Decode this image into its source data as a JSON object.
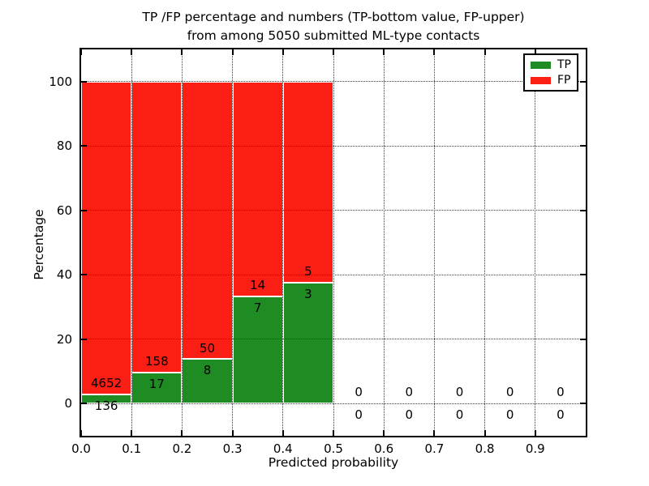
{
  "chart_data": {
    "type": "bar",
    "stacked": true,
    "title_lines": [
      "TP /FP percentage and numbers (TP-bottom value, FP-upper)",
      "from among 5050 submitted ML-type contacts"
    ],
    "xlabel": "Predicted probability",
    "ylabel": "Percentage",
    "xlim": [
      0.0,
      1.0
    ],
    "ylim": [
      -10,
      110
    ],
    "x_tick_labels": [
      "0.0",
      "0.1",
      "0.2",
      "0.3",
      "0.4",
      "0.5",
      "0.6",
      "0.7",
      "0.8",
      "0.9"
    ],
    "y_tick_values": [
      0,
      20,
      40,
      60,
      80,
      100
    ],
    "grid": "dotted",
    "legend_position": "upper right",
    "series": [
      {
        "name": "TP",
        "color": "#1e8c23",
        "role": "bottom-segment"
      },
      {
        "name": "FP",
        "color": "#fa1e14",
        "role": "top-segment"
      }
    ],
    "bins": [
      {
        "x0": 0.0,
        "x1": 0.1,
        "tp": 136,
        "fp": 4652,
        "tp_pct": 2.84,
        "fp_pct": 97.16
      },
      {
        "x0": 0.1,
        "x1": 0.2,
        "tp": 17,
        "fp": 158,
        "tp_pct": 9.71,
        "fp_pct": 90.29
      },
      {
        "x0": 0.2,
        "x1": 0.3,
        "tp": 8,
        "fp": 50,
        "tp_pct": 13.79,
        "fp_pct": 86.21
      },
      {
        "x0": 0.3,
        "x1": 0.4,
        "tp": 7,
        "fp": 14,
        "tp_pct": 33.33,
        "fp_pct": 66.67
      },
      {
        "x0": 0.4,
        "x1": 0.5,
        "tp": 3,
        "fp": 5,
        "tp_pct": 37.5,
        "fp_pct": 62.5
      },
      {
        "x0": 0.5,
        "x1": 0.6,
        "tp": 0,
        "fp": 0,
        "tp_pct": 0,
        "fp_pct": 0
      },
      {
        "x0": 0.6,
        "x1": 0.7,
        "tp": 0,
        "fp": 0,
        "tp_pct": 0,
        "fp_pct": 0
      },
      {
        "x0": 0.7,
        "x1": 0.8,
        "tp": 0,
        "fp": 0,
        "tp_pct": 0,
        "fp_pct": 0
      },
      {
        "x0": 0.8,
        "x1": 0.9,
        "tp": 0,
        "fp": 0,
        "tp_pct": 0,
        "fp_pct": 0
      },
      {
        "x0": 0.9,
        "x1": 1.0,
        "tp": 0,
        "fp": 0,
        "tp_pct": 0,
        "fp_pct": 0
      }
    ]
  }
}
